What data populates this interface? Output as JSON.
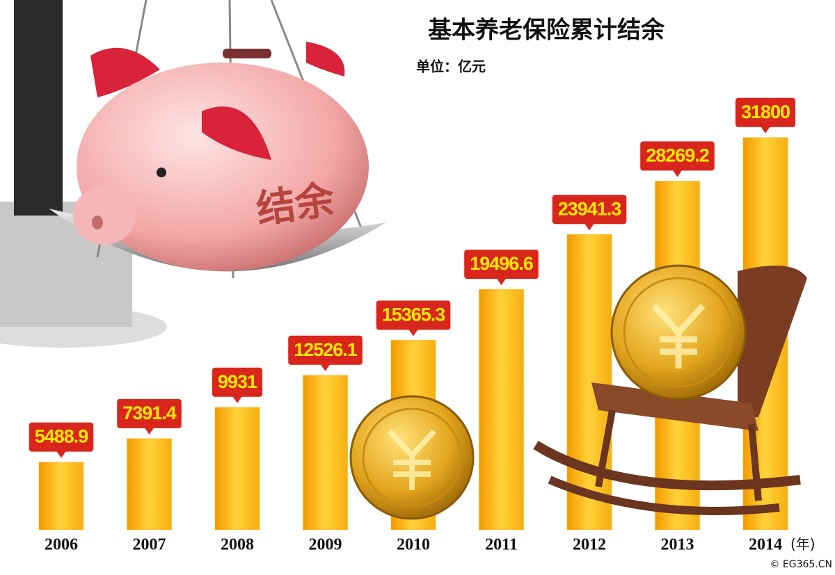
{
  "chart_data": {
    "type": "bar",
    "title": "基本养老保险累计结余",
    "subtitle": "单位：亿元",
    "categories": [
      "2006",
      "2007",
      "2008",
      "2009",
      "2010",
      "2011",
      "2012",
      "2013",
      "2014"
    ],
    "values": [
      5488.9,
      7391.4,
      9931,
      12526.1,
      15365.3,
      19496.6,
      23941.3,
      28269.2,
      31800
    ],
    "color": "#f9b81c",
    "label_box_color": "#d9261c",
    "label_text_color": "#ffea00",
    "ylim": [
      0,
      35000
    ],
    "year_unit": "(年)",
    "annotations": [
      "结余"
    ],
    "source": "© EG365.CN"
  }
}
